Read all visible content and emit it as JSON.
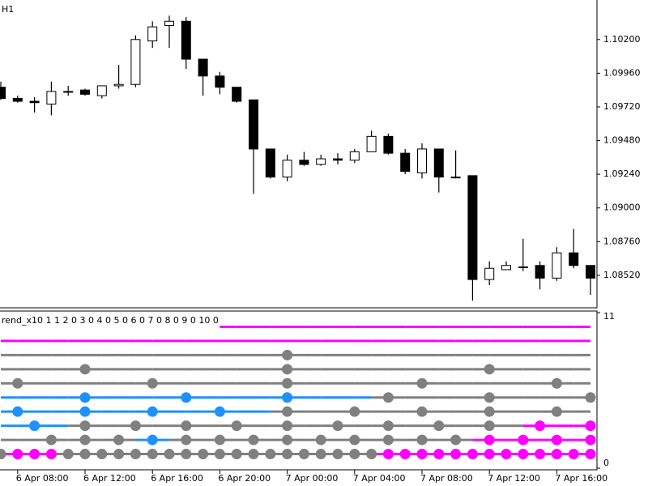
{
  "chart_data": [
    {
      "type": "candlestick",
      "title": "H1",
      "categories": [
        null,
        "6 Apr 08:00",
        null,
        null,
        null,
        "6 Apr 12:00",
        null,
        null,
        null,
        "6 Apr 16:00",
        null,
        null,
        null,
        "6 Apr 20:00",
        null,
        null,
        null,
        "7 Apr 00:00",
        null,
        null,
        null,
        "7 Apr 04:00",
        null,
        null,
        null,
        "7 Apr 08:00",
        null,
        null,
        null,
        "7 Apr 12:00",
        null,
        null,
        null,
        "7 Apr 16:00",
        null,
        null
      ],
      "open": [
        1.0986,
        1.0978,
        1.0976,
        1.0974,
        1.0983,
        1.0984,
        1.098,
        1.0987,
        1.0988,
        1.1019,
        1.103,
        1.1033,
        1.1006,
        1.0994,
        1.0986,
        1.0977,
        1.0942,
        1.0922,
        1.0934,
        1.0931,
        1.0935,
        1.0934,
        1.094,
        1.0951,
        1.0939,
        1.0925,
        1.0942,
        1.0922,
        1.0923,
        1.0849,
        1.0856,
        1.0858,
        1.0859,
        1.085,
        1.0868,
        1.0859
      ],
      "high": [
        1.099,
        1.098,
        1.0979,
        1.099,
        1.0987,
        1.0985,
        1.0987,
        1.1002,
        1.1023,
        1.1033,
        1.1037,
        1.1036,
        1.1006,
        1.0997,
        1.0986,
        1.0977,
        1.0942,
        1.0938,
        1.094,
        1.0938,
        1.0939,
        1.0942,
        1.0955,
        1.0953,
        1.0942,
        1.0946,
        1.0942,
        1.0941,
        1.0923,
        1.0862,
        1.0862,
        1.0878,
        1.0862,
        1.0872,
        1.0885,
        1.0859
      ],
      "low": [
        1.0977,
        1.0975,
        1.0968,
        1.0966,
        1.098,
        1.098,
        1.0978,
        1.0985,
        1.0986,
        1.1014,
        1.1014,
        1.0999,
        1.098,
        1.0981,
        1.0975,
        1.091,
        1.0921,
        1.0919,
        1.093,
        1.093,
        1.0931,
        1.0932,
        1.094,
        1.0938,
        1.0924,
        1.0921,
        1.0911,
        1.0921,
        1.0834,
        1.0845,
        1.0856,
        1.0855,
        1.0842,
        1.0848,
        1.0857,
        1.0838
      ],
      "close": [
        1.0978,
        1.0976,
        1.0975,
        1.0983,
        1.0983,
        1.0981,
        1.0987,
        1.0988,
        1.102,
        1.1029,
        1.1033,
        1.1006,
        1.0994,
        1.0986,
        1.0976,
        1.0942,
        1.0922,
        1.0934,
        1.0931,
        1.0935,
        1.0934,
        1.094,
        1.0951,
        1.0939,
        1.0926,
        1.0942,
        1.0922,
        1.0922,
        1.0849,
        1.0857,
        1.0859,
        1.0858,
        1.085,
        1.0868,
        1.0859,
        1.085
      ],
      "up_color": "#ffffff",
      "down_color": "#000000",
      "ylim": [
        1.083,
        1.1047
      ],
      "yticks": [
        {
          "value": 1.0852,
          "label": "1.08520"
        },
        {
          "value": 1.0876,
          "label": "1.08760"
        },
        {
          "value": 1.09,
          "label": "1.09000"
        },
        {
          "value": 1.0924,
          "label": "1.09240"
        },
        {
          "value": 1.0948,
          "label": "1.09480"
        },
        {
          "value": 1.0972,
          "label": "1.09720"
        },
        {
          "value": 1.0996,
          "label": "1.09960"
        },
        {
          "value": 1.102,
          "label": "1.10200"
        }
      ]
    },
    {
      "type": "dots",
      "title": "rend_x10 1 1 2 0 3 0 4 0 5 0 6 0 7 0 8 0 9 0 10 0",
      "palette": [
        "#808080",
        "#1e90ff",
        "#ff00ff"
      ],
      "ylim": [
        0,
        11
      ],
      "yticks": [
        0,
        11
      ],
      "rows": [
        {
          "level": 1,
          "states": [
            0,
            2,
            2,
            2,
            0,
            0,
            0,
            0,
            0,
            0,
            0,
            0,
            0,
            0,
            0,
            0,
            0,
            0,
            0,
            0,
            0,
            0,
            0,
            2,
            2,
            2,
            2,
            2,
            2,
            2,
            2,
            2,
            2,
            2,
            2,
            2
          ],
          "dots": [
            0,
            1,
            2,
            3,
            4,
            5,
            6,
            7,
            8,
            9,
            10,
            11,
            12,
            13,
            14,
            15,
            16,
            17,
            18,
            19,
            20,
            21,
            22,
            23,
            24,
            25,
            26,
            27,
            28,
            29,
            30,
            31,
            32,
            33,
            34,
            35
          ]
        },
        {
          "level": 2,
          "states": [
            0,
            0,
            0,
            0,
            0,
            0,
            0,
            0,
            0,
            1,
            1,
            0,
            0,
            0,
            0,
            0,
            0,
            0,
            0,
            0,
            0,
            0,
            0,
            0,
            0,
            0,
            0,
            0,
            0,
            2,
            2,
            2,
            2,
            2,
            2,
            2
          ],
          "dots": [
            3,
            5,
            7,
            9,
            11,
            13,
            15,
            17,
            19,
            21,
            23,
            25,
            27,
            29,
            31,
            33,
            35
          ]
        },
        {
          "level": 3,
          "states": [
            1,
            1,
            1,
            1,
            1,
            0,
            0,
            0,
            0,
            0,
            0,
            0,
            0,
            0,
            0,
            0,
            0,
            0,
            0,
            0,
            0,
            0,
            0,
            0,
            0,
            0,
            0,
            0,
            0,
            0,
            0,
            0,
            2,
            2,
            2,
            2
          ],
          "dots": [
            2,
            5,
            8,
            11,
            14,
            17,
            20,
            23,
            26,
            29,
            32,
            35
          ]
        },
        {
          "level": 4,
          "states": [
            1,
            1,
            1,
            1,
            1,
            1,
            1,
            1,
            1,
            1,
            1,
            1,
            1,
            1,
            1,
            1,
            1,
            0,
            0,
            0,
            0,
            0,
            0,
            0,
            0,
            0,
            0,
            0,
            0,
            0,
            0,
            0,
            0,
            0,
            0,
            0
          ],
          "dots": [
            1,
            5,
            9,
            13,
            17,
            21,
            25,
            29,
            33
          ]
        },
        {
          "level": 5,
          "states": [
            1,
            1,
            1,
            1,
            1,
            1,
            1,
            1,
            1,
            1,
            1,
            1,
            1,
            1,
            1,
            1,
            1,
            1,
            1,
            1,
            1,
            1,
            1,
            0,
            0,
            0,
            0,
            0,
            0,
            0,
            0,
            0,
            0,
            0,
            0,
            0
          ],
          "dots": [
            5,
            11,
            17,
            23,
            29,
            35
          ]
        },
        {
          "level": 6,
          "states": [
            0,
            0,
            0,
            0,
            0,
            0,
            0,
            0,
            0,
            0,
            0,
            0,
            0,
            0,
            0,
            0,
            0,
            0,
            0,
            0,
            0,
            0,
            0,
            0,
            0,
            0,
            0,
            0,
            0,
            0,
            0,
            0,
            0,
            0,
            0,
            0
          ],
          "dots": [
            1,
            9,
            17,
            25,
            33
          ]
        },
        {
          "level": 7,
          "states": [
            0,
            0,
            0,
            0,
            0,
            0,
            0,
            0,
            0,
            0,
            0,
            0,
            0,
            0,
            0,
            0,
            0,
            0,
            0,
            0,
            0,
            0,
            0,
            0,
            0,
            0,
            0,
            0,
            0,
            0,
            0,
            0,
            0,
            0,
            0,
            0
          ],
          "dots": [
            5,
            17,
            29
          ]
        },
        {
          "level": 8,
          "states": [
            0,
            0,
            0,
            0,
            0,
            0,
            0,
            0,
            0,
            0,
            0,
            0,
            0,
            0,
            0,
            0,
            0,
            0,
            0,
            0,
            0,
            0,
            0,
            0,
            0,
            0,
            0,
            0,
            0,
            0,
            0,
            0,
            0,
            0,
            0,
            0
          ],
          "dots": [
            17
          ]
        },
        {
          "level": 9,
          "states": [
            2,
            2,
            2,
            2,
            2,
            2,
            2,
            2,
            2,
            2,
            2,
            2,
            2,
            2,
            2,
            2,
            2,
            2,
            2,
            2,
            2,
            2,
            2,
            2,
            2,
            2,
            2,
            2,
            2,
            2,
            2,
            2,
            2,
            2,
            2,
            2
          ],
          "dots": []
        },
        {
          "level": 10,
          "states": [
            null,
            null,
            null,
            null,
            null,
            null,
            null,
            null,
            null,
            null,
            null,
            null,
            null,
            2,
            2,
            2,
            2,
            2,
            2,
            2,
            2,
            2,
            2,
            2,
            2,
            2,
            2,
            2,
            2,
            2,
            2,
            2,
            2,
            2,
            2,
            2
          ],
          "dots": []
        }
      ]
    }
  ]
}
